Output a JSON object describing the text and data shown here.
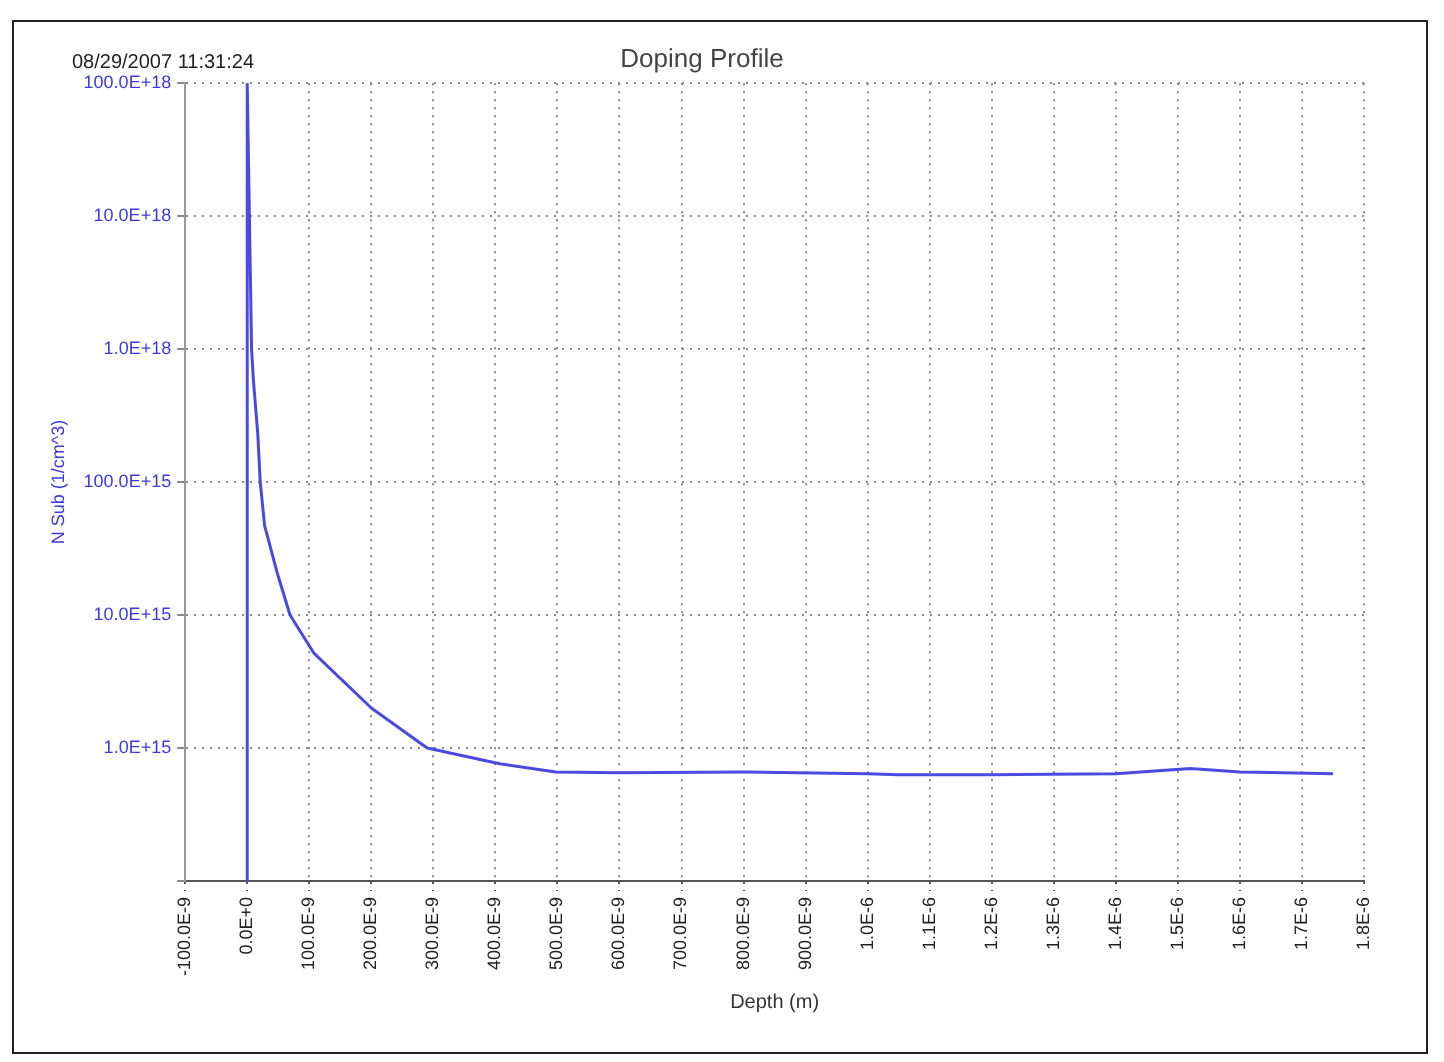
{
  "chart_data": {
    "type": "line",
    "title": "Doping Profile",
    "xlabel": "Depth (m)",
    "ylabel": "N Sub (1/cm^3)",
    "annotations": [
      "08/29/2007 11:31:24"
    ],
    "x": [
      0,
      0,
      7e-09,
      1e-08,
      1.7e-08,
      2.1e-08,
      2.8e-08,
      4.8e-08,
      6.9e-08,
      1.07e-07,
      2e-07,
      2.9e-07,
      4.07e-07,
      4.97e-07,
      6e-07,
      8e-07,
      1e-06,
      1.05e-06,
      1.2e-06,
      1.4e-06,
      1.52e-06,
      1.6e-06,
      1.75e-06
    ],
    "series": [
      {
        "color": "#4a4ae0",
        "values": [
          100000000000000.0,
          1e+20,
          1e+18,
          5.8e+17,
          2.3e+17,
          1e+17,
          4.7e+16,
          2.1e+16,
          1e+16,
          5200000000000000.0,
          2000000000000000.0,
          1000000000000000.0,
          760000000000000.0,
          660000000000000.0,
          650000000000000.0,
          660000000000000.0,
          640000000000000.0,
          630000000000000.0,
          630000000000000.0,
          640000000000000.0,
          700000000000000.0,
          660000000000000.0,
          640000000000000.0
        ]
      }
    ],
    "log": "y",
    "grid": true,
    "marker": "none",
    "line_style": "solid",
    "legend": false,
    "xlim": [
      -1e-07,
      1.8e-06
    ],
    "xticks": [
      {
        "value": -1e-07,
        "label": "-100.0E-9"
      },
      {
        "value": 0,
        "label": "0.0E+0"
      },
      {
        "value": 1e-07,
        "label": "100.0E-9"
      },
      {
        "value": 2e-07,
        "label": "200.0E-9"
      },
      {
        "value": 3e-07,
        "label": "300.0E-9"
      },
      {
        "value": 4e-07,
        "label": "400.0E-9"
      },
      {
        "value": 5e-07,
        "label": "500.0E-9"
      },
      {
        "value": 6e-07,
        "label": "600.0E-9"
      },
      {
        "value": 7e-07,
        "label": "700.0E-9"
      },
      {
        "value": 8e-07,
        "label": "800.0E-9"
      },
      {
        "value": 9e-07,
        "label": "900.0E-9"
      },
      {
        "value": 1e-06,
        "label": "1.0E-6"
      },
      {
        "value": 1.1e-06,
        "label": "1.1E-6"
      },
      {
        "value": 1.2e-06,
        "label": "1.2E-6"
      },
      {
        "value": 1.3e-06,
        "label": "1.3E-6"
      },
      {
        "value": 1.4e-06,
        "label": "1.4E-6"
      },
      {
        "value": 1.5e-06,
        "label": "1.5E-6"
      },
      {
        "value": 1.6e-06,
        "label": "1.6E-6"
      },
      {
        "value": 1.7e-06,
        "label": "1.7E-6"
      },
      {
        "value": 1.8e-06,
        "label": "1.8E-6"
      }
    ],
    "ylim": [
      100000000000000.0,
      1e+20
    ],
    "yticks": [
      {
        "value": 100000000000000.0,
        "label": null
      },
      {
        "value": 1000000000000000.0,
        "label": "1.0E+15"
      },
      {
        "value": 1e+16,
        "label": "10.0E+15"
      },
      {
        "value": 1e+17,
        "label": "100.0E+15"
      },
      {
        "value": 1e+18,
        "label": "1.0E+18"
      },
      {
        "value": 1e+19,
        "label": "10.0E+18"
      },
      {
        "value": 1e+20,
        "label": "100.0E+18"
      }
    ]
  }
}
